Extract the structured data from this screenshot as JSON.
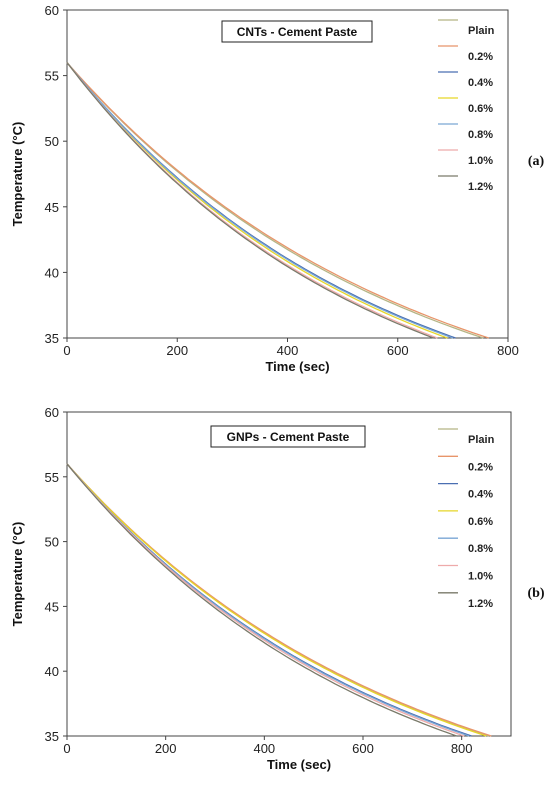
{
  "colors": {
    "Plain": "#b5b585",
    "0.2%": "#e8956a",
    "0.4%": "#4a6fb2",
    "0.6%": "#e6d628",
    "0.8%": "#7aa6d4",
    "1.0%": "#eeaaaa",
    "1.2%": "#7a7a6a"
  },
  "chart_data": [
    {
      "type": "line",
      "title": "CNTs - Cement Paste",
      "panel_label": "(a)",
      "xlabel": "Time (sec)",
      "ylabel": "Temperature (°C)",
      "xlim": [
        0,
        800
      ],
      "ylim": [
        35,
        60
      ],
      "xticks": [
        "0",
        "200",
        "400",
        "600",
        "800"
      ],
      "yticks": [
        "35",
        "40",
        "45",
        "50",
        "55",
        "60"
      ],
      "grid": false,
      "legend": "right",
      "series": [
        {
          "name": "Plain",
          "start": 56,
          "end_time": 755
        },
        {
          "name": "0.2%",
          "start": 56,
          "end_time": 765
        },
        {
          "name": "0.4%",
          "start": 56,
          "end_time": 705
        },
        {
          "name": "0.6%",
          "start": 56,
          "end_time": 690
        },
        {
          "name": "0.8%",
          "start": 56,
          "end_time": 700
        },
        {
          "name": "1.0%",
          "start": 56,
          "end_time": 672
        },
        {
          "name": "1.2%",
          "start": 56,
          "end_time": 665
        }
      ]
    },
    {
      "type": "line",
      "title": "GNPs - Cement Paste",
      "panel_label": "(b)",
      "xlabel": "Time (sec)",
      "ylabel": "Temperature  (°C)",
      "xlim": [
        0,
        900
      ],
      "ylim": [
        35,
        60
      ],
      "xticks": [
        "0",
        "200",
        "400",
        "600",
        "800"
      ],
      "yticks": [
        "35",
        "40",
        "45",
        "50",
        "55",
        "60"
      ],
      "grid": false,
      "legend": "right",
      "series": [
        {
          "name": "Plain",
          "start": 56,
          "end_time": 855
        },
        {
          "name": "0.2%",
          "start": 56,
          "end_time": 860
        },
        {
          "name": "0.4%",
          "start": 56,
          "end_time": 820
        },
        {
          "name": "0.6%",
          "start": 56,
          "end_time": 850
        },
        {
          "name": "0.8%",
          "start": 56,
          "end_time": 815
        },
        {
          "name": "1.0%",
          "start": 56,
          "end_time": 805
        },
        {
          "name": "1.2%",
          "start": 56,
          "end_time": 790
        }
      ]
    }
  ]
}
